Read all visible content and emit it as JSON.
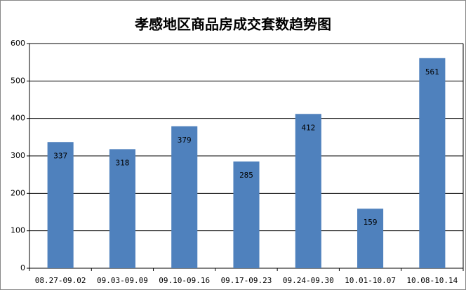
{
  "chart_data": {
    "type": "bar",
    "title": "孝感地区商品房成交套数趋势图",
    "categories": [
      "08.27-09.02",
      "09.03-09.09",
      "09.10-09.16",
      "09.17-09.23",
      "09.24-09.30",
      "10.01-10.07",
      "10.08-10.14"
    ],
    "values": [
      337,
      318,
      379,
      285,
      412,
      159,
      561
    ],
    "color": "#4f81bd",
    "ylim": [
      0,
      600
    ],
    "yticks": [
      0,
      100,
      200,
      300,
      400,
      500,
      600
    ],
    "grid": true
  }
}
